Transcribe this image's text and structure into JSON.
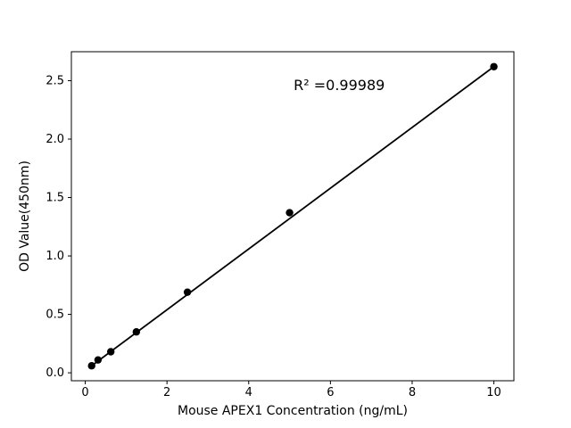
{
  "chart_data": {
    "type": "scatter",
    "title": "",
    "xlabel": "Mouse APEX1 Concentration (ng/mL)",
    "ylabel": "OD Value(450nm)",
    "x": [
      0.156,
      0.3125,
      0.625,
      1.25,
      2.5,
      5,
      10
    ],
    "y": [
      0.06,
      0.11,
      0.18,
      0.35,
      0.69,
      1.37,
      2.62
    ],
    "fit": {
      "type": "linear",
      "r_squared": 0.99989
    },
    "annotations": [
      {
        "text": "R² =0.99989",
        "x": 5.1,
        "y": 2.42
      }
    ],
    "xlim": [
      -0.34,
      10.49
    ],
    "ylim": [
      -0.068,
      2.748
    ],
    "xticks": [
      0,
      2,
      4,
      6,
      8,
      10
    ],
    "xticklabels": [
      "0",
      "2",
      "4",
      "6",
      "8",
      "10"
    ],
    "yticks": [
      0.0,
      0.5,
      1.0,
      1.5,
      2.0,
      2.5
    ],
    "yticklabels": [
      "0.0",
      "0.5",
      "1.0",
      "1.5",
      "2.0",
      "2.5"
    ],
    "grid": false,
    "marker_color": "#000000",
    "line_color": "#000000",
    "background": "#ffffff"
  }
}
